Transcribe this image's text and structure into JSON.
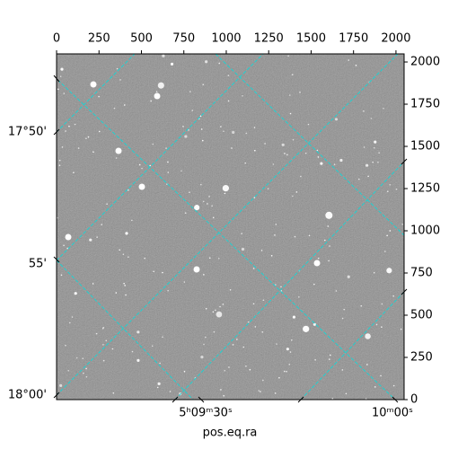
{
  "chart_data": {
    "type": "image",
    "x_label": "pos.eq.ra",
    "xlim": [
      0,
      2048
    ],
    "ylim": [
      0,
      2048
    ],
    "xticks": [
      0,
      250,
      500,
      750,
      1000,
      1250,
      1500,
      1750,
      2000
    ],
    "yticks": [
      0,
      250,
      500,
      750,
      1000,
      1250,
      1500,
      1750,
      2000
    ],
    "ra_tick_labels": [
      "5ʰ09ᵐ30ˢ",
      "10ᵐ00ˢ"
    ],
    "dec_tick_labels": [
      "17°50'",
      "55'",
      "18°00'"
    ]
  }
}
